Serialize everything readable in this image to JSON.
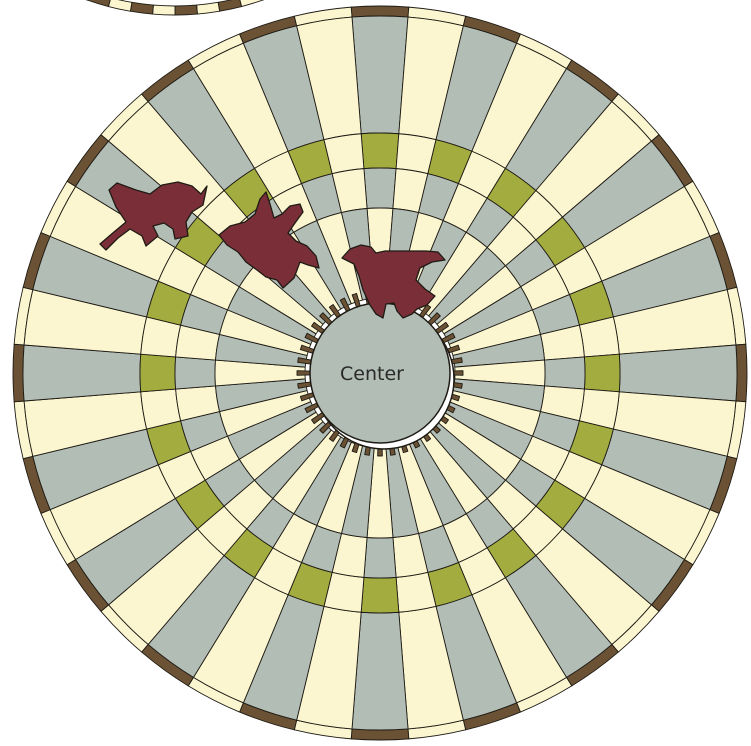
{
  "center_label": "Center",
  "colors": {
    "cream": "#fbf6d0",
    "gray": "#b2bdb6",
    "green": "#a3ac3f",
    "brown": "#6b5234",
    "bird": "#7a2f38",
    "outline": "#1e1b14"
  },
  "icons": [
    "bird-icon",
    "bird-icon",
    "bird-icon"
  ]
}
